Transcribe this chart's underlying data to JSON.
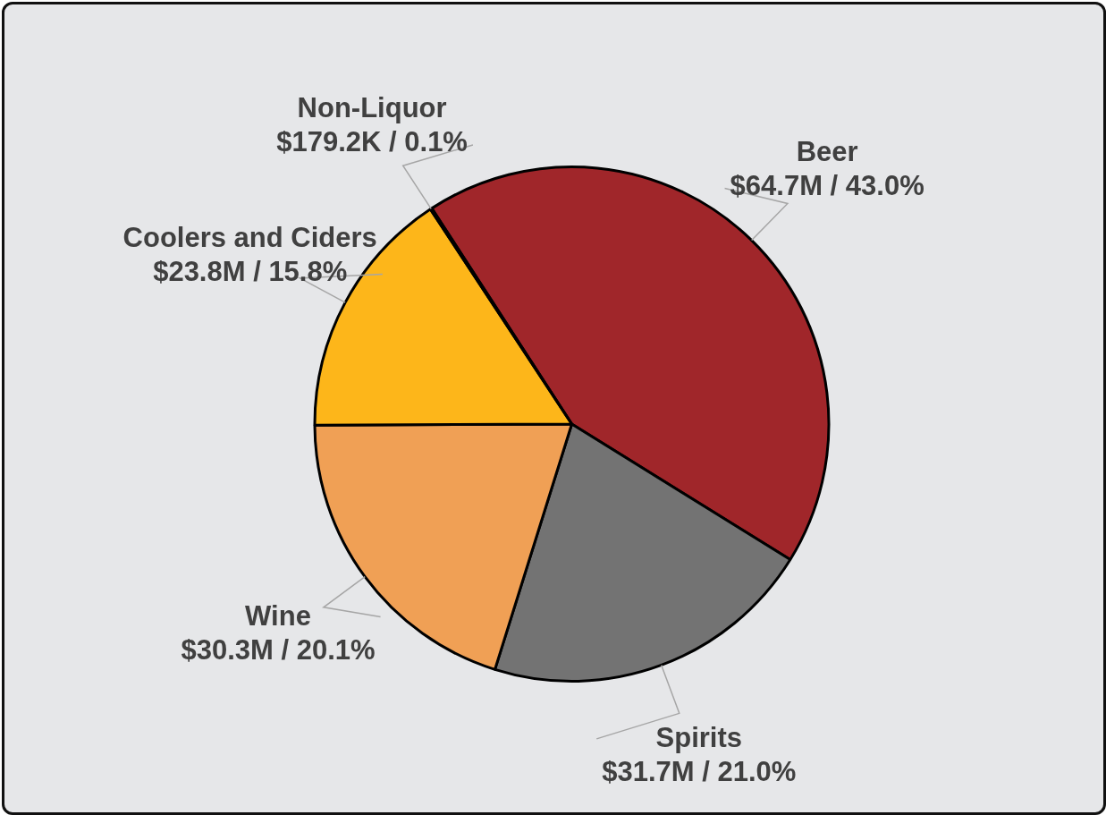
{
  "chart_data": {
    "type": "pie",
    "categories": [
      "Beer",
      "Spirits",
      "Wine",
      "Coolers and Ciders",
      "Non-Liquor"
    ],
    "values": [
      43.0,
      21.0,
      20.1,
      15.8,
      0.1
    ],
    "value_labels": [
      "$64.7M / 43.0%",
      "$31.7M / 21.0%",
      "$30.3M / 20.1%",
      "$23.8M / 15.8%",
      "$179.2K / 0.1%"
    ],
    "colors": [
      "#a0262a",
      "#737373",
      "#f0a055",
      "#fdb61a",
      "#1a1a1a"
    ],
    "legend": false
  }
}
